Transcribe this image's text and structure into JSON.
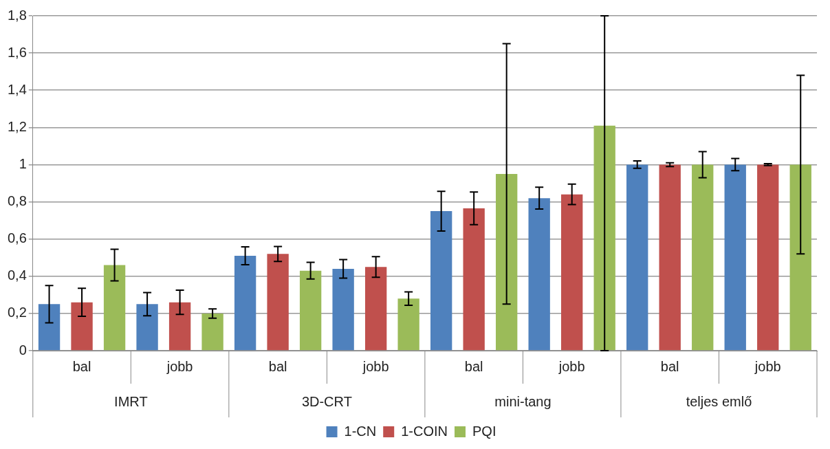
{
  "chart_data": {
    "type": "bar",
    "categories": [
      "bal",
      "jobb",
      "bal",
      "jobb",
      "bal",
      "jobb",
      "bal",
      "jobb"
    ],
    "annotations": [
      "IMRT",
      "3D-CRT",
      "mini-tang",
      "teljes emlő"
    ],
    "series": [
      {
        "name": "1-CN",
        "color": "#4f81bd",
        "values": [
          0.25,
          0.25,
          0.51,
          0.44,
          0.75,
          0.82,
          1.0,
          1.0
        ],
        "errors": [
          0.1,
          0.062,
          0.048,
          0.05,
          0.107,
          0.059,
          0.02,
          0.033
        ]
      },
      {
        "name": "1-COIN",
        "color": "#c0504d",
        "values": [
          0.26,
          0.26,
          0.52,
          0.45,
          0.765,
          0.84,
          1.0,
          1.0
        ],
        "errors": [
          0.075,
          0.065,
          0.04,
          0.055,
          0.088,
          0.055,
          0.01,
          0.005
        ]
      },
      {
        "name": "PQI",
        "color": "#9bbb59",
        "values": [
          0.46,
          0.2,
          0.43,
          0.28,
          0.95,
          1.21,
          1.0,
          1.0
        ],
        "errors": [
          0.085,
          0.025,
          0.045,
          0.036,
          0.7,
          [
            0,
            1.8
          ],
          0.07,
          0.48
        ]
      }
    ],
    "ylim": [
      0,
      1.8
    ],
    "yticks": [
      0,
      {
        "value": 0.2,
        "label": "0,2"
      },
      {
        "value": 0.4,
        "label": "0,4"
      },
      {
        "value": 0.6,
        "label": "0,6"
      },
      {
        "value": 0.8,
        "label": "0,8"
      },
      1,
      {
        "value": 1.2,
        "label": "1,2"
      },
      {
        "value": 1.4,
        "label": "1,4"
      },
      {
        "value": 1.6,
        "label": "1,6"
      },
      {
        "value": 1.8,
        "label": "1,8"
      }
    ],
    "grid": "y",
    "legend": "bottom"
  }
}
